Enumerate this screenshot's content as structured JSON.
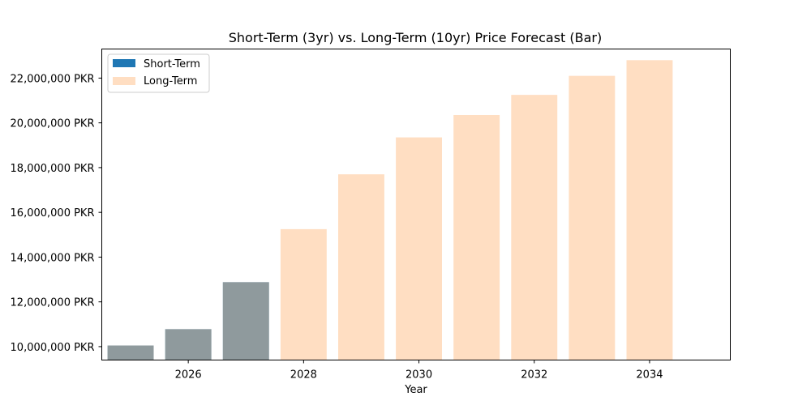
{
  "chart_data": {
    "type": "bar",
    "title": "Short-Term (3yr) vs. Long-Term (10yr) Price Forecast (Bar)",
    "xlabel": "Year",
    "ylabel": "",
    "x_ticks": [
      "2026",
      "2028",
      "2030",
      "2032",
      "2034"
    ],
    "x_tick_values": [
      2026,
      2028,
      2030,
      2032,
      2034
    ],
    "y_ticks": [
      "10,000,000 PKR",
      "12,000,000 PKR",
      "14,000,000 PKR",
      "16,000,000 PKR",
      "18,000,000 PKR",
      "20,000,000 PKR",
      "22,000,000 PKR"
    ],
    "y_tick_values": [
      10000000,
      12000000,
      14000000,
      16000000,
      18000000,
      20000000,
      22000000
    ],
    "xlim": [
      2024.5,
      2035.4
    ],
    "ylim": [
      9400000,
      23300000
    ],
    "legend_position": "top-left",
    "grid": false,
    "series": [
      {
        "name": "Short-Term",
        "color": "#1f77b4",
        "x": [
          2025,
          2026,
          2027
        ],
        "values": [
          10050000,
          10780000,
          12880000
        ]
      },
      {
        "name": "Long-Term",
        "color": "#ffbe86",
        "x": [
          2025,
          2026,
          2027,
          2028,
          2029,
          2030,
          2031,
          2032,
          2033,
          2034
        ],
        "values": [
          10050000,
          10780000,
          12880000,
          15250000,
          17700000,
          19350000,
          20350000,
          21250000,
          22100000,
          22800000
        ]
      }
    ]
  }
}
